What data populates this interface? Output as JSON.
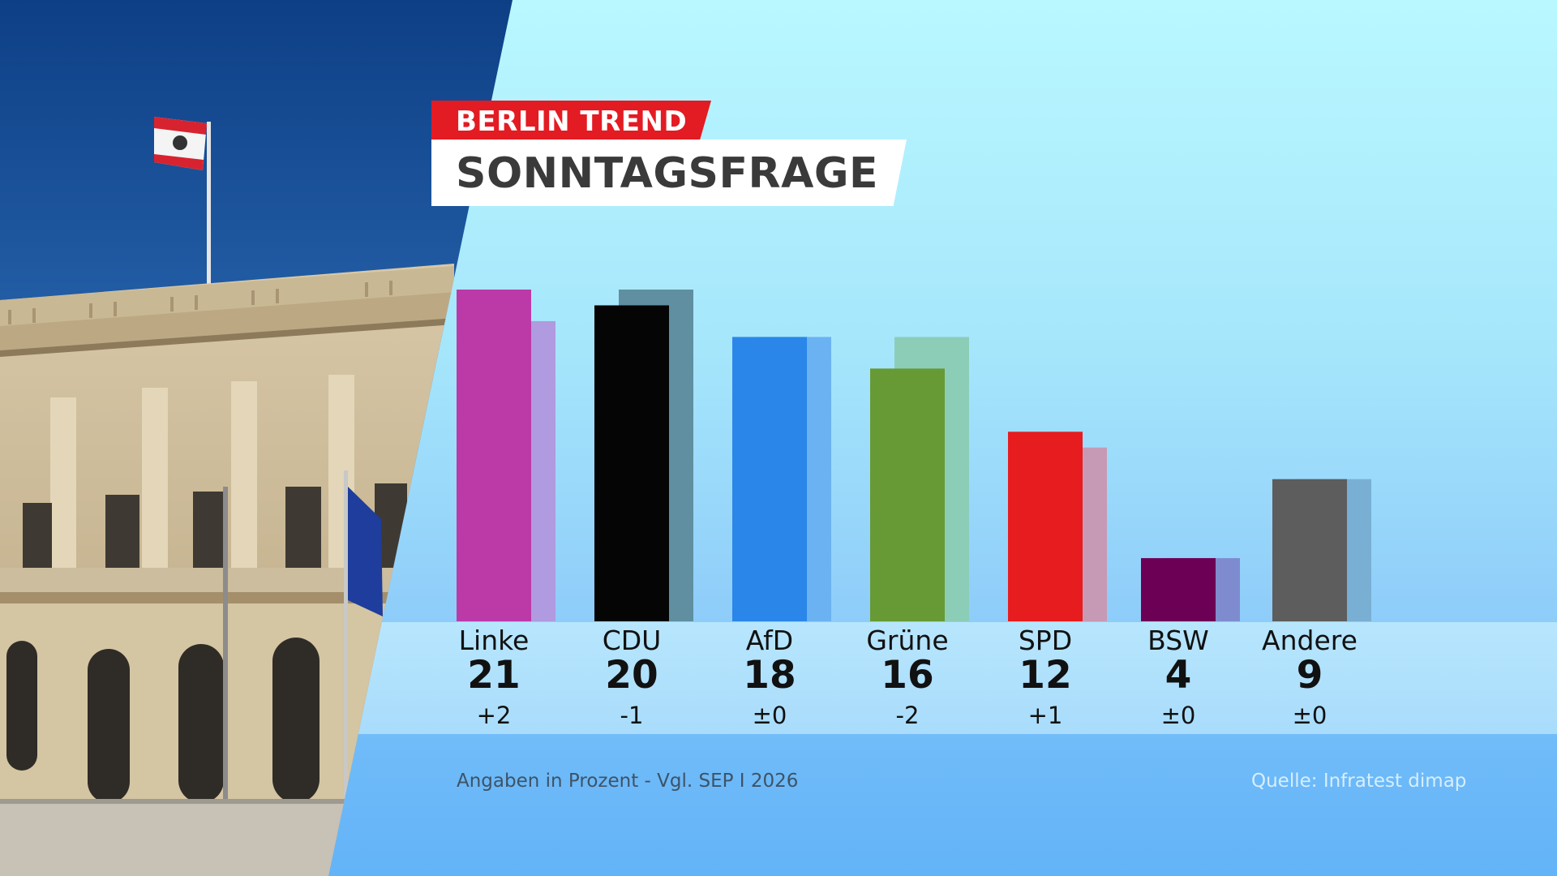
{
  "header": {
    "kicker": "BERLIN TREND",
    "title": "SONNTAGSFRAGE"
  },
  "footer": {
    "note": "Angaben in Prozent - Vgl. SEP I 2026",
    "source": "Quelle: Infratest dimap"
  },
  "chart_data": {
    "type": "bar",
    "title": "SONNTAGSFRAGE",
    "subtitle": "BERLIN TREND",
    "categories": [
      "Linke",
      "CDU",
      "AfD",
      "Grüne",
      "SPD",
      "BSW",
      "Andere"
    ],
    "series": [
      {
        "values": [
          21,
          20,
          18,
          16,
          12,
          4,
          9
        ],
        "colors": [
          "#bb3aa8",
          "#050505",
          "#2a86e9",
          "#679a34",
          "#e61c1e",
          "#6c0054",
          "#5d5d5d"
        ]
      },
      {
        "values": [
          19,
          21,
          18,
          18,
          11,
          4,
          9
        ],
        "colors": [
          "#b09ae0",
          "#5f8fa0",
          "#6bb2f3",
          "#8ccdb8",
          "#c69ab5",
          "#7e8ccf",
          "#79afd3"
        ]
      }
    ],
    "value_labels": [
      "21",
      "20",
      "18",
      "16",
      "12",
      "4",
      "9"
    ],
    "changes": [
      "+2",
      "-1",
      "±0",
      "-2",
      "+1",
      "±0",
      "±0"
    ],
    "ylim": [
      0,
      23
    ],
    "grid": false,
    "legend": "none"
  }
}
